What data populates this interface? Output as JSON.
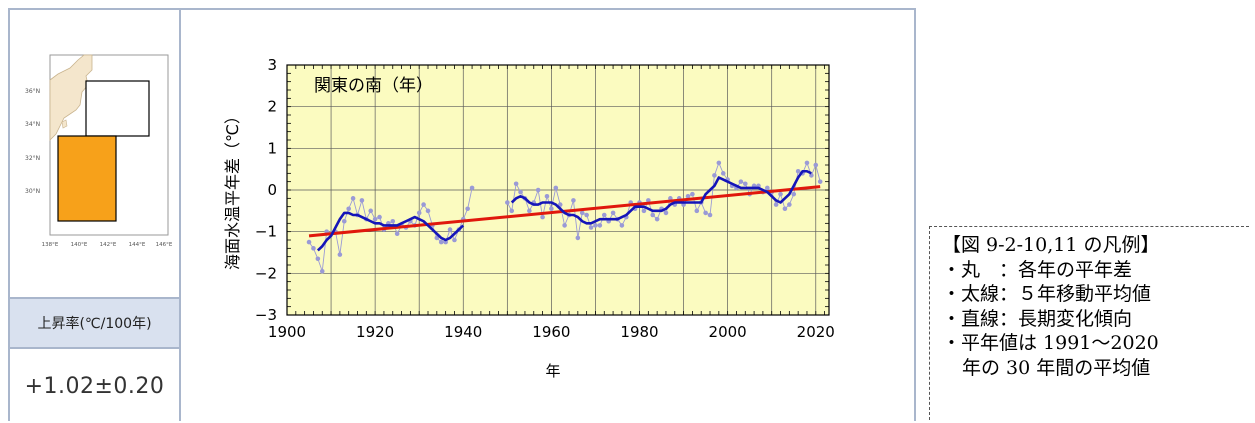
{
  "map": {
    "lat_labels": [
      "36°N",
      "34°N",
      "32°N",
      "30°N"
    ],
    "lon_labels": [
      "138°E",
      "140°E",
      "142°E",
      "144°E",
      "146°E"
    ],
    "colors": {
      "region": "#f7a11a",
      "land": "#f4e6cc",
      "sea": "#ffffff"
    }
  },
  "rate_table": {
    "header": "上昇率(℃/100年)",
    "value": "+1.02±0.20"
  },
  "legend": {
    "title": "【図 9-2-10,11 の凡例】",
    "lines": [
      "・丸　：各年の平年差",
      "・太線：５年移動平均値",
      "・直線：長期変化傾向",
      "・平年値は 1991～2020",
      "年の 30 年間の平均値"
    ]
  },
  "chart_data": {
    "type": "line",
    "title": "関東の南（年）",
    "xlabel": "年",
    "ylabel": "海面水温平年差（℃）",
    "xlim": [
      1900,
      2023
    ],
    "ylim": [
      -3,
      3
    ],
    "x_ticks": [
      1900,
      1920,
      1940,
      1960,
      1980,
      2000,
      2020
    ],
    "y_ticks": [
      -3,
      -2,
      -1,
      0,
      1,
      2,
      3
    ],
    "grid": true,
    "series": [
      {
        "kind": "annual",
        "color": "#9a9ad6",
        "points": [
          [
            1905,
            -1.25
          ],
          [
            1906,
            -1.4
          ],
          [
            1907,
            -1.65
          ],
          [
            1908,
            -1.95
          ],
          [
            1909,
            -1.0
          ],
          [
            1910,
            -1.05
          ],
          [
            1911,
            -1.0
          ],
          [
            1912,
            -1.55
          ],
          [
            1913,
            -0.75
          ],
          [
            1914,
            -0.45
          ],
          [
            1915,
            -0.2
          ],
          [
            1916,
            -0.6
          ],
          [
            1917,
            -0.25
          ],
          [
            1918,
            -0.7
          ],
          [
            1919,
            -0.5
          ],
          [
            1920,
            -0.7
          ],
          [
            1921,
            -0.65
          ],
          [
            1922,
            -0.95
          ],
          [
            1923,
            -0.8
          ],
          [
            1924,
            -0.75
          ],
          [
            1925,
            -1.05
          ],
          [
            1926,
            -0.85
          ],
          [
            1927,
            -0.9
          ],
          [
            1928,
            -0.75
          ],
          [
            1929,
            -0.85
          ],
          [
            1930,
            -0.55
          ],
          [
            1931,
            -0.35
          ],
          [
            1932,
            -0.5
          ],
          [
            1933,
            -0.85
          ],
          [
            1934,
            -1.15
          ],
          [
            1935,
            -1.25
          ],
          [
            1936,
            -1.25
          ],
          [
            1937,
            -0.95
          ],
          [
            1938,
            -1.2
          ],
          [
            1939,
            -0.95
          ],
          [
            1940,
            -0.7
          ],
          [
            1941,
            -0.45
          ],
          [
            1942,
            0.05
          ],
          [
            1950,
            -0.3
          ],
          [
            1951,
            -0.5
          ],
          [
            1952,
            0.15
          ],
          [
            1953,
            -0.05
          ],
          [
            1954,
            -0.2
          ],
          [
            1955,
            -0.5
          ],
          [
            1956,
            -0.3
          ],
          [
            1957,
            0.0
          ],
          [
            1958,
            -0.65
          ],
          [
            1959,
            -0.15
          ],
          [
            1960,
            -0.45
          ],
          [
            1961,
            0.05
          ],
          [
            1962,
            -0.35
          ],
          [
            1963,
            -0.85
          ],
          [
            1964,
            -0.6
          ],
          [
            1965,
            -0.25
          ],
          [
            1966,
            -1.15
          ],
          [
            1967,
            -0.55
          ],
          [
            1968,
            -0.6
          ],
          [
            1969,
            -0.9
          ],
          [
            1970,
            -0.85
          ],
          [
            1971,
            -0.85
          ],
          [
            1972,
            -0.6
          ],
          [
            1973,
            -0.75
          ],
          [
            1974,
            -0.55
          ],
          [
            1975,
            -0.7
          ],
          [
            1976,
            -0.85
          ],
          [
            1977,
            -0.65
          ],
          [
            1978,
            -0.3
          ],
          [
            1979,
            -0.45
          ],
          [
            1980,
            -0.3
          ],
          [
            1981,
            -0.5
          ],
          [
            1982,
            -0.25
          ],
          [
            1983,
            -0.6
          ],
          [
            1984,
            -0.7
          ],
          [
            1985,
            -0.45
          ],
          [
            1986,
            -0.55
          ],
          [
            1987,
            -0.2
          ],
          [
            1988,
            -0.35
          ],
          [
            1989,
            -0.2
          ],
          [
            1990,
            -0.35
          ],
          [
            1991,
            -0.15
          ],
          [
            1992,
            -0.1
          ],
          [
            1993,
            -0.5
          ],
          [
            1994,
            -0.3
          ],
          [
            1995,
            -0.55
          ],
          [
            1996,
            -0.6
          ],
          [
            1997,
            0.35
          ],
          [
            1998,
            0.65
          ],
          [
            1999,
            0.4
          ],
          [
            2000,
            0.25
          ],
          [
            2001,
            0.1
          ],
          [
            2002,
            0.05
          ],
          [
            2003,
            0.2
          ],
          [
            2004,
            0.15
          ],
          [
            2005,
            -0.1
          ],
          [
            2006,
            0.1
          ],
          [
            2007,
            0.1
          ],
          [
            2008,
            -0.05
          ],
          [
            2009,
            0.05
          ],
          [
            2010,
            -0.05
          ],
          [
            2011,
            -0.35
          ],
          [
            2012,
            -0.1
          ],
          [
            2013,
            -0.45
          ],
          [
            2014,
            -0.35
          ],
          [
            2015,
            -0.1
          ],
          [
            2016,
            0.45
          ],
          [
            2017,
            0.4
          ],
          [
            2018,
            0.65
          ],
          [
            2019,
            0.35
          ],
          [
            2020,
            0.6
          ],
          [
            2021,
            0.2
          ]
        ]
      },
      {
        "kind": "moving_average_5yr",
        "color": "#1515b8",
        "points": [
          [
            1907,
            -1.45
          ],
          [
            1908,
            -1.35
          ],
          [
            1909,
            -1.2
          ],
          [
            1910,
            -1.1
          ],
          [
            1911,
            -0.9
          ],
          [
            1912,
            -0.7
          ],
          [
            1913,
            -0.55
          ],
          [
            1914,
            -0.55
          ],
          [
            1915,
            -0.6
          ],
          [
            1916,
            -0.6
          ],
          [
            1917,
            -0.65
          ],
          [
            1918,
            -0.7
          ],
          [
            1919,
            -0.75
          ],
          [
            1920,
            -0.8
          ],
          [
            1921,
            -0.8
          ],
          [
            1922,
            -0.85
          ],
          [
            1923,
            -0.85
          ],
          [
            1924,
            -0.85
          ],
          [
            1925,
            -0.85
          ],
          [
            1926,
            -0.8
          ],
          [
            1927,
            -0.75
          ],
          [
            1928,
            -0.7
          ],
          [
            1929,
            -0.65
          ],
          [
            1930,
            -0.7
          ],
          [
            1931,
            -0.75
          ],
          [
            1932,
            -0.85
          ],
          [
            1933,
            -0.95
          ],
          [
            1934,
            -1.05
          ],
          [
            1935,
            -1.15
          ],
          [
            1936,
            -1.2
          ],
          [
            1937,
            -1.15
          ],
          [
            1938,
            -1.05
          ],
          [
            1939,
            -0.95
          ],
          [
            1940,
            -0.85
          ],
          [
            1951,
            -0.3
          ],
          [
            1952,
            -0.2
          ],
          [
            1953,
            -0.15
          ],
          [
            1954,
            -0.2
          ],
          [
            1955,
            -0.3
          ],
          [
            1956,
            -0.35
          ],
          [
            1957,
            -0.35
          ],
          [
            1958,
            -0.3
          ],
          [
            1959,
            -0.3
          ],
          [
            1960,
            -0.3
          ],
          [
            1961,
            -0.35
          ],
          [
            1962,
            -0.45
          ],
          [
            1963,
            -0.55
          ],
          [
            1964,
            -0.6
          ],
          [
            1965,
            -0.6
          ],
          [
            1966,
            -0.65
          ],
          [
            1967,
            -0.75
          ],
          [
            1968,
            -0.8
          ],
          [
            1969,
            -0.8
          ],
          [
            1970,
            -0.75
          ],
          [
            1971,
            -0.7
          ],
          [
            1972,
            -0.7
          ],
          [
            1973,
            -0.7
          ],
          [
            1974,
            -0.7
          ],
          [
            1975,
            -0.7
          ],
          [
            1976,
            -0.65
          ],
          [
            1977,
            -0.6
          ],
          [
            1978,
            -0.5
          ],
          [
            1979,
            -0.4
          ],
          [
            1980,
            -0.4
          ],
          [
            1981,
            -0.4
          ],
          [
            1982,
            -0.45
          ],
          [
            1983,
            -0.5
          ],
          [
            1984,
            -0.5
          ],
          [
            1985,
            -0.5
          ],
          [
            1986,
            -0.45
          ],
          [
            1987,
            -0.35
          ],
          [
            1988,
            -0.3
          ],
          [
            1989,
            -0.3
          ],
          [
            1990,
            -0.3
          ],
          [
            1991,
            -0.3
          ],
          [
            1992,
            -0.3
          ],
          [
            1993,
            -0.3
          ],
          [
            1994,
            -0.3
          ],
          [
            1995,
            -0.1
          ],
          [
            1996,
            0.0
          ],
          [
            1997,
            0.1
          ],
          [
            1998,
            0.3
          ],
          [
            1999,
            0.25
          ],
          [
            2000,
            0.2
          ],
          [
            2001,
            0.15
          ],
          [
            2002,
            0.1
          ],
          [
            2003,
            0.05
          ],
          [
            2004,
            0.05
          ],
          [
            2005,
            0.05
          ],
          [
            2006,
            0.05
          ],
          [
            2007,
            0.05
          ],
          [
            2008,
            0.0
          ],
          [
            2009,
            -0.05
          ],
          [
            2010,
            -0.15
          ],
          [
            2011,
            -0.25
          ],
          [
            2012,
            -0.3
          ],
          [
            2013,
            -0.2
          ],
          [
            2014,
            -0.1
          ],
          [
            2015,
            0.1
          ],
          [
            2016,
            0.3
          ],
          [
            2017,
            0.45
          ],
          [
            2018,
            0.45
          ],
          [
            2019,
            0.4
          ]
        ]
      },
      {
        "kind": "linear_trend",
        "color": "#e0180c",
        "points": [
          [
            1905,
            -1.1
          ],
          [
            2021,
            0.08
          ]
        ]
      }
    ],
    "colors": {
      "plot_background": "#fbfbc0",
      "grid": "#5a5a5a"
    }
  }
}
